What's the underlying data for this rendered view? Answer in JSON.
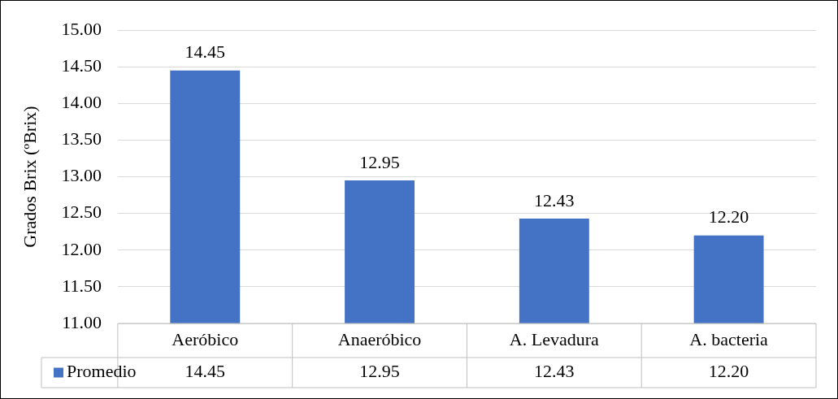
{
  "chart_data": {
    "type": "bar",
    "ylabel": "Grados Brix (ºBrix)",
    "categories": [
      "Aeróbico",
      "Anaeróbico",
      "A. Levadura",
      "A. bacteria"
    ],
    "series": [
      {
        "name": "Promedio",
        "color": "#4472c4",
        "values": [
          14.45,
          12.95,
          12.43,
          12.2
        ],
        "value_labels": [
          "14.45",
          "12.95",
          "12.43",
          "12.20"
        ]
      }
    ],
    "ylim": [
      11,
      15
    ],
    "yticks": [
      {
        "value": 11,
        "label": "11.00"
      },
      {
        "value": 11.5,
        "label": "11.50"
      },
      {
        "value": 12,
        "label": "12.00"
      },
      {
        "value": 12.5,
        "label": "12.50"
      },
      {
        "value": 13,
        "label": "13.00"
      },
      {
        "value": 13.5,
        "label": "13.50"
      },
      {
        "value": 14,
        "label": "14.00"
      },
      {
        "value": 14.5,
        "label": "14.50"
      },
      {
        "value": 15,
        "label": "15.00"
      }
    ],
    "grid": true,
    "legend": "bottom"
  }
}
